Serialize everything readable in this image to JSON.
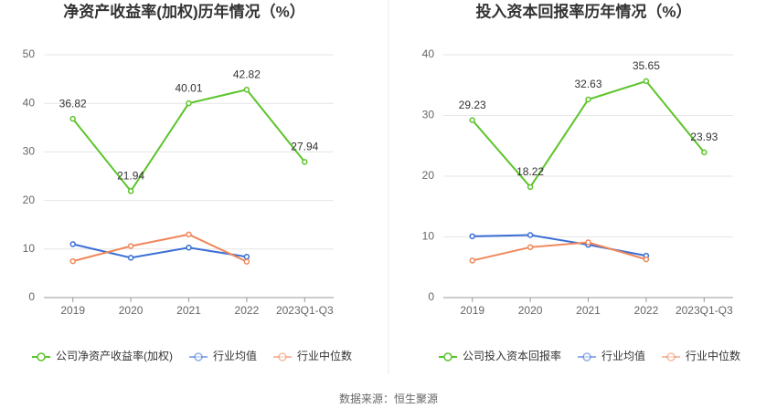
{
  "chart_data": [
    {
      "type": "line",
      "title": "净资产收益率(加权)历年情况（%）",
      "categories": [
        "2019",
        "2020",
        "2021",
        "2022",
        "2023Q1-Q3"
      ],
      "ylim": [
        0,
        50
      ],
      "yticks": [
        0,
        10,
        20,
        30,
        40,
        50
      ],
      "grid": true,
      "series": [
        {
          "name": "公司净资产收益率(加权)",
          "color": "#5cc42a",
          "labels": true,
          "values": [
            36.82,
            21.94,
            40.01,
            42.82,
            27.94
          ]
        },
        {
          "name": "行业均值",
          "color": "#3b6fd6",
          "values": [
            11.0,
            8.2,
            10.3,
            8.4,
            null
          ]
        },
        {
          "name": "行业中位数",
          "color": "#f0875a",
          "values": [
            7.5,
            10.6,
            13.0,
            7.4,
            null
          ]
        }
      ]
    },
    {
      "type": "line",
      "title": "投入资本回报率历年情况（%）",
      "categories": [
        "2019",
        "2020",
        "2021",
        "2022",
        "2023Q1-Q3"
      ],
      "ylim": [
        0,
        40
      ],
      "yticks": [
        0,
        10,
        20,
        30,
        40
      ],
      "grid": true,
      "series": [
        {
          "name": "公司投入资本回报率",
          "color": "#5cc42a",
          "labels": true,
          "values": [
            29.23,
            18.22,
            32.63,
            35.65,
            23.93
          ]
        },
        {
          "name": "行业均值",
          "color": "#3b6fd6",
          "values": [
            10.1,
            10.3,
            8.7,
            6.9,
            null
          ]
        },
        {
          "name": "行业中位数",
          "color": "#f0875a",
          "values": [
            6.1,
            8.3,
            9.1,
            6.3,
            null
          ]
        }
      ]
    }
  ],
  "source": "数据来源：恒生聚源"
}
